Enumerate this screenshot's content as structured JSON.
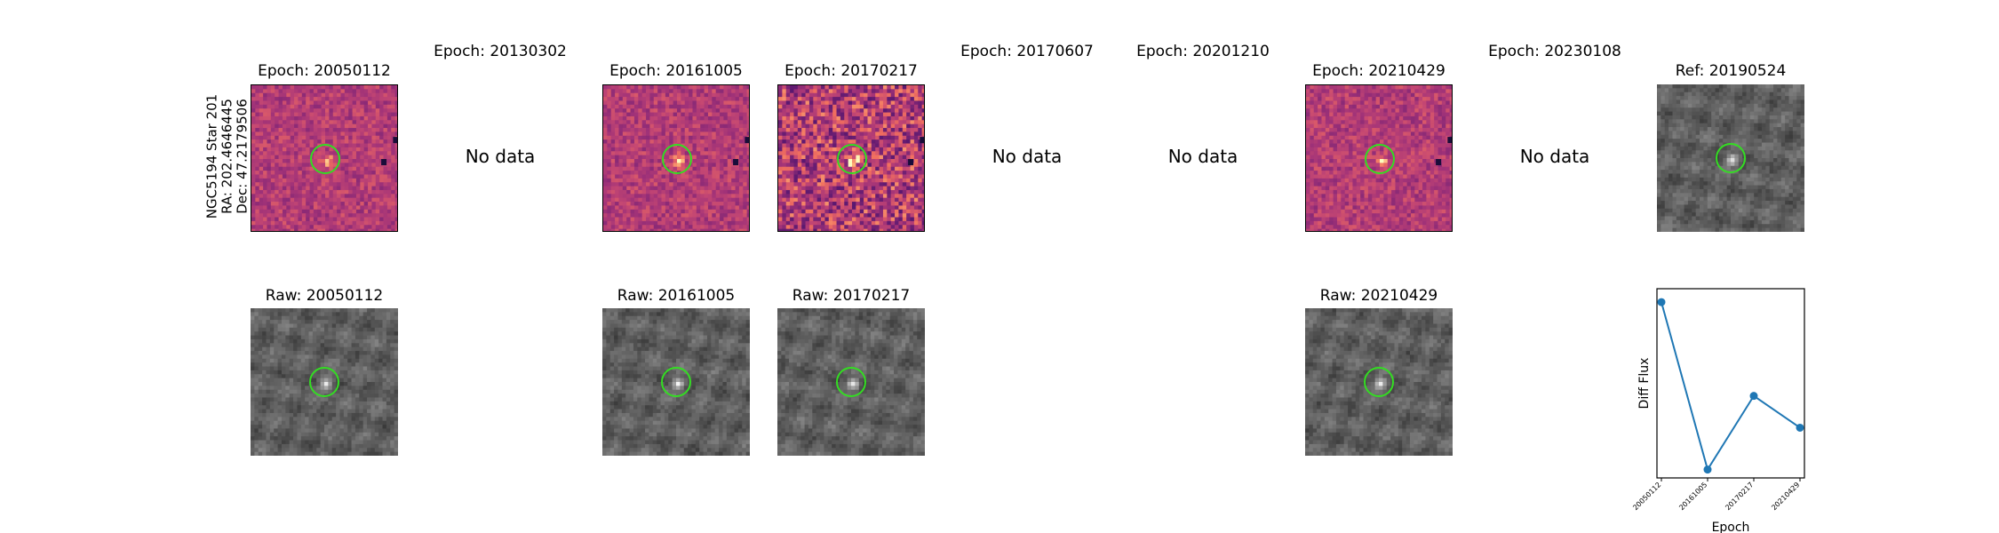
{
  "row_label": {
    "name": "NGC5194 Star 201",
    "ra": "RA: 202.4646445",
    "dec": "Dec: 47.2179506"
  },
  "diff_panels": [
    {
      "title": "Epoch: 20050112",
      "has_data": true
    },
    {
      "title": "Epoch: 20130302",
      "has_data": false,
      "message": "No data"
    },
    {
      "title": "Epoch: 20161005",
      "has_data": true
    },
    {
      "title": "Epoch: 20170217",
      "has_data": true
    },
    {
      "title": "Epoch: 20170607",
      "has_data": false,
      "message": "No data"
    },
    {
      "title": "Epoch: 20201210",
      "has_data": false,
      "message": "No data"
    },
    {
      "title": "Epoch: 20210429",
      "has_data": true
    },
    {
      "title": "Epoch: 20230108",
      "has_data": false,
      "message": "No data"
    }
  ],
  "reference_panel": {
    "title": "Ref: 20190524"
  },
  "raw_panels": [
    {
      "title": "Raw: 20050112"
    },
    {
      "title": "Raw: 20161005"
    },
    {
      "title": "Raw: 20170217"
    },
    {
      "title": "Raw: 20210429"
    }
  ],
  "colors": {
    "marker_circle": "#33dd22",
    "diff_cmap_mid": "#b9427a",
    "raw_gray": "#6e6e6e",
    "series_line": "#1f77b4"
  },
  "chart_data": {
    "type": "line",
    "title": "",
    "xlabel": "Epoch",
    "ylabel": "Diff Flux",
    "categories": [
      "20050112",
      "20161005",
      "20170217",
      "20210429"
    ],
    "series": [
      {
        "values": [
          1.0,
          0.0,
          0.44,
          0.25
        ]
      }
    ],
    "ylim": [
      -0.05,
      1.08
    ],
    "grid": false,
    "y_tick_labels_shown": false
  }
}
